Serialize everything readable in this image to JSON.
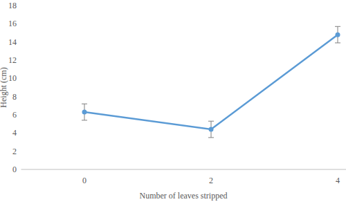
{
  "chart_data": {
    "type": "line",
    "x_label": "Number of leaves stripped",
    "y_label": "Height (cm)",
    "categories": [
      "0",
      "2",
      "4"
    ],
    "values": [
      6.3,
      4.4,
      14.8
    ],
    "errors": [
      0.9,
      0.9,
      0.9
    ],
    "color": "#5b9bd5",
    "marker": "circle",
    "line_style": "solid",
    "ylim": [
      0,
      18
    ],
    "yticks": [
      0,
      2,
      4,
      6,
      8,
      10,
      12,
      14,
      16,
      18
    ],
    "grid": false
  }
}
